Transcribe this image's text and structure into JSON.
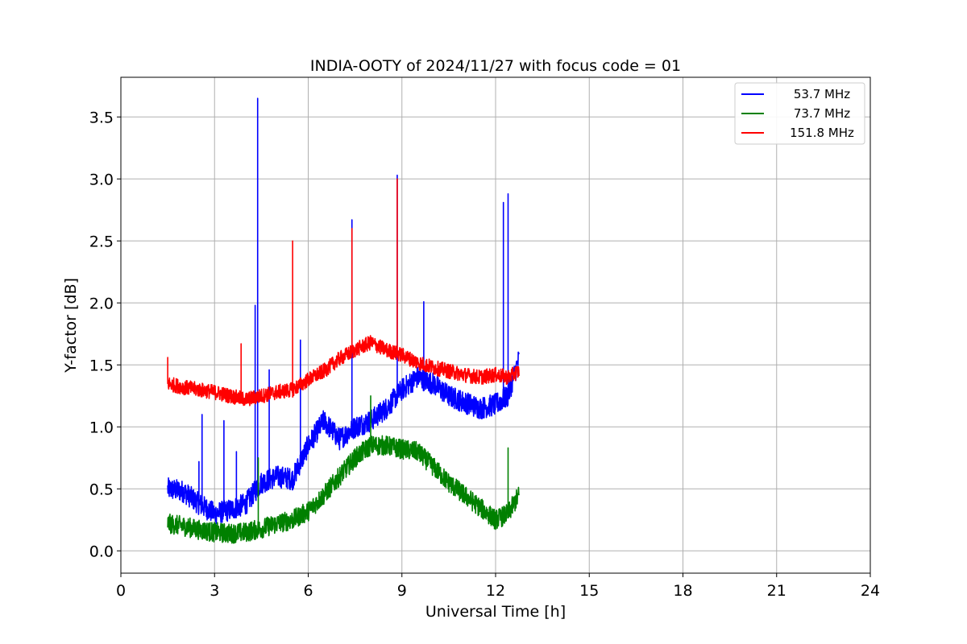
{
  "chart_data": {
    "type": "line",
    "title": "INDIA-OOTY of 2024/11/27 with focus code = 01",
    "xlabel": "Universal Time [h]",
    "ylabel": "Y-factor [dB]",
    "xlim": [
      0,
      24
    ],
    "ylim": [
      -0.18,
      3.82
    ],
    "xticks": [
      0,
      3,
      6,
      9,
      12,
      15,
      18,
      21,
      24
    ],
    "xtick_labels": [
      "0",
      "3",
      "6",
      "9",
      "12",
      "15",
      "18",
      "21",
      "24"
    ],
    "yticks": [
      0.0,
      0.5,
      1.0,
      1.5,
      2.0,
      2.5,
      3.0,
      3.5
    ],
    "ytick_labels": [
      "0.0",
      "0.5",
      "1.0",
      "1.5",
      "2.0",
      "2.5",
      "3.0",
      "3.5"
    ],
    "grid": true,
    "legend_position": "top-right",
    "series": [
      {
        "name": "53.7 MHz",
        "color": "#0000ff",
        "x": [
          1.5,
          2.0,
          2.5,
          3.0,
          3.5,
          4.0,
          4.5,
          5.0,
          5.5,
          6.0,
          6.5,
          7.0,
          7.5,
          8.0,
          8.5,
          9.0,
          9.5,
          10.0,
          10.5,
          11.0,
          11.5,
          12.0,
          12.4,
          12.75
        ],
        "y": [
          0.5,
          0.48,
          0.38,
          0.3,
          0.33,
          0.38,
          0.55,
          0.6,
          0.58,
          0.85,
          1.05,
          0.9,
          1.0,
          1.05,
          1.15,
          1.3,
          1.4,
          1.35,
          1.25,
          1.2,
          1.15,
          1.18,
          1.25,
          1.55
        ],
        "spikes": [
          {
            "x": 2.5,
            "y": 0.72
          },
          {
            "x": 2.6,
            "y": 1.1
          },
          {
            "x": 3.3,
            "y": 1.05
          },
          {
            "x": 3.7,
            "y": 0.8
          },
          {
            "x": 4.3,
            "y": 1.98
          },
          {
            "x": 4.38,
            "y": 3.65
          },
          {
            "x": 4.75,
            "y": 1.46
          },
          {
            "x": 5.75,
            "y": 1.7
          },
          {
            "x": 7.4,
            "y": 2.67
          },
          {
            "x": 8.85,
            "y": 3.03
          },
          {
            "x": 9.7,
            "y": 2.01
          },
          {
            "x": 12.25,
            "y": 2.81
          },
          {
            "x": 12.4,
            "y": 2.88
          }
        ]
      },
      {
        "name": "73.7 MHz",
        "color": "#008000",
        "x": [
          1.5,
          2.0,
          2.5,
          3.0,
          3.5,
          4.0,
          4.5,
          5.0,
          5.5,
          6.0,
          6.5,
          7.0,
          7.5,
          8.0,
          8.5,
          9.0,
          9.5,
          10.0,
          10.5,
          11.0,
          11.5,
          12.0,
          12.4,
          12.75
        ],
        "y": [
          0.22,
          0.2,
          0.17,
          0.15,
          0.14,
          0.15,
          0.18,
          0.22,
          0.25,
          0.32,
          0.45,
          0.6,
          0.75,
          0.85,
          0.85,
          0.82,
          0.8,
          0.68,
          0.55,
          0.45,
          0.35,
          0.25,
          0.3,
          0.45
        ],
        "spikes": [
          {
            "x": 4.4,
            "y": 0.75
          },
          {
            "x": 8.0,
            "y": 1.25
          },
          {
            "x": 12.4,
            "y": 0.83
          }
        ]
      },
      {
        "name": "151.8 MHz",
        "color": "#ff0000",
        "x": [
          1.5,
          2.0,
          2.5,
          3.0,
          3.5,
          4.0,
          4.5,
          5.0,
          5.5,
          6.0,
          6.5,
          7.0,
          7.5,
          8.0,
          8.5,
          9.0,
          9.5,
          10.0,
          10.5,
          11.0,
          11.5,
          12.0,
          12.4,
          12.75
        ],
        "y": [
          1.35,
          1.32,
          1.3,
          1.28,
          1.25,
          1.22,
          1.25,
          1.28,
          1.3,
          1.38,
          1.45,
          1.55,
          1.62,
          1.68,
          1.62,
          1.58,
          1.52,
          1.48,
          1.45,
          1.42,
          1.4,
          1.42,
          1.4,
          1.45
        ],
        "spikes": [
          {
            "x": 1.5,
            "y": 1.56
          },
          {
            "x": 3.85,
            "y": 1.67
          },
          {
            "x": 5.5,
            "y": 2.5
          },
          {
            "x": 7.4,
            "y": 2.6
          },
          {
            "x": 8.85,
            "y": 3.0
          }
        ]
      }
    ]
  }
}
